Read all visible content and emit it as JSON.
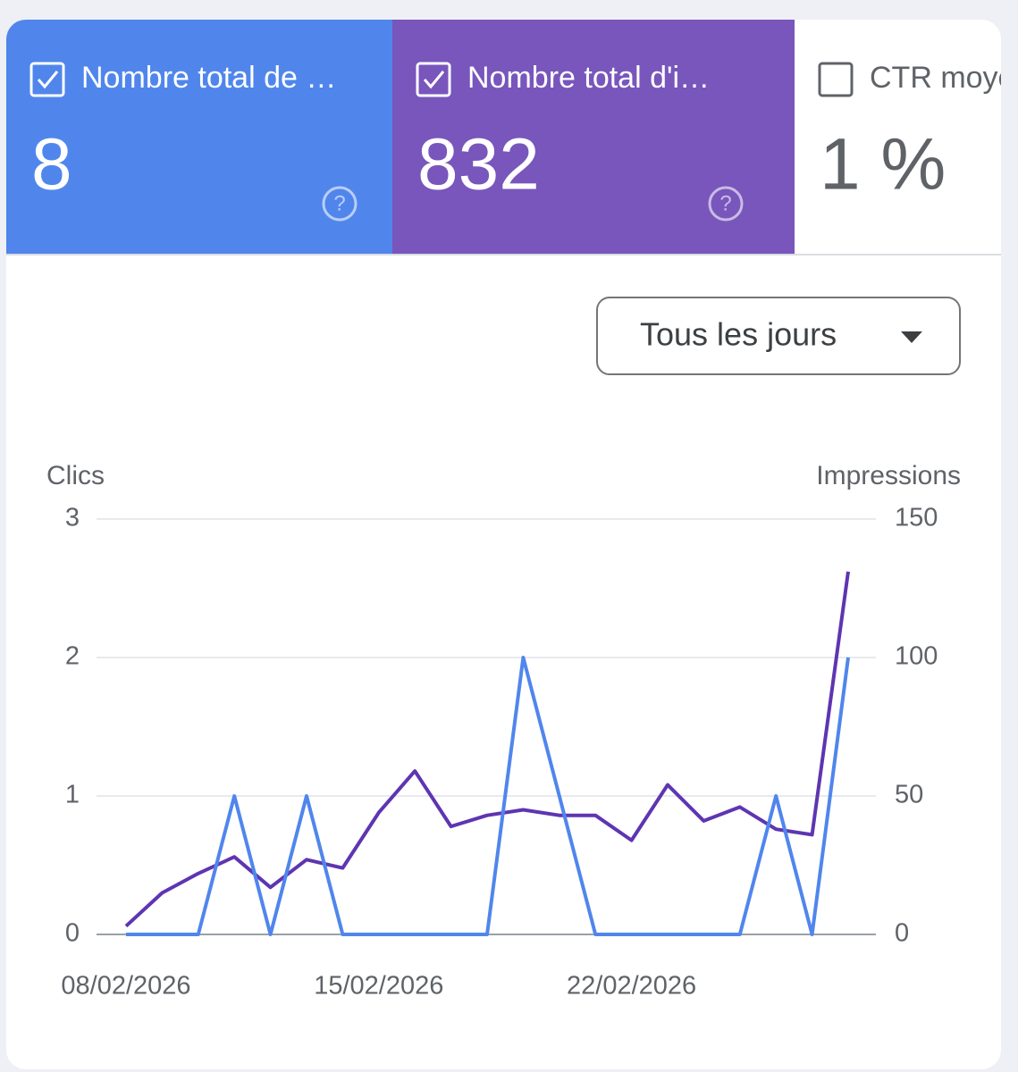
{
  "cards": [
    {
      "title": "Nombre total de …",
      "value": "8",
      "checked": true,
      "color": "#5086ec"
    },
    {
      "title": "Nombre total d'i…",
      "value": "832",
      "checked": true,
      "color": "#7856bc"
    },
    {
      "title": "CTR moyen",
      "value": "1 %",
      "checked": false,
      "color": "#ffffff"
    }
  ],
  "dropdown": "Tous les jours",
  "chart_data": {
    "type": "line",
    "y_label": "Clics",
    "y2_label": "Impressions",
    "categories": [
      "08/02/2026",
      null,
      null,
      null,
      null,
      null,
      null,
      "15/02/2026",
      null,
      null,
      null,
      null,
      null,
      null,
      "22/02/2026",
      null,
      null,
      null,
      null,
      null,
      null
    ],
    "series": [
      {
        "name": "Clics",
        "color": "#5086ec",
        "values": [
          0,
          0,
          0,
          1,
          0,
          1,
          0,
          0,
          0,
          0,
          0,
          2,
          1,
          0,
          0,
          0,
          0,
          0,
          1,
          0,
          2
        ]
      },
      {
        "name": "Impressions",
        "color": "#5e35b1",
        "axis": "y2",
        "values": [
          3,
          15,
          22,
          28,
          17,
          27,
          24,
          44,
          59,
          39,
          43,
          45,
          43,
          43,
          34,
          54,
          41,
          46,
          38,
          36,
          131
        ]
      }
    ],
    "ylim": [
      0,
      3
    ],
    "yticks": [
      0,
      1,
      2,
      3
    ],
    "y2lim": [
      0,
      150
    ],
    "y2ticks": [
      0,
      50,
      100,
      150
    ],
    "grid": true
  }
}
